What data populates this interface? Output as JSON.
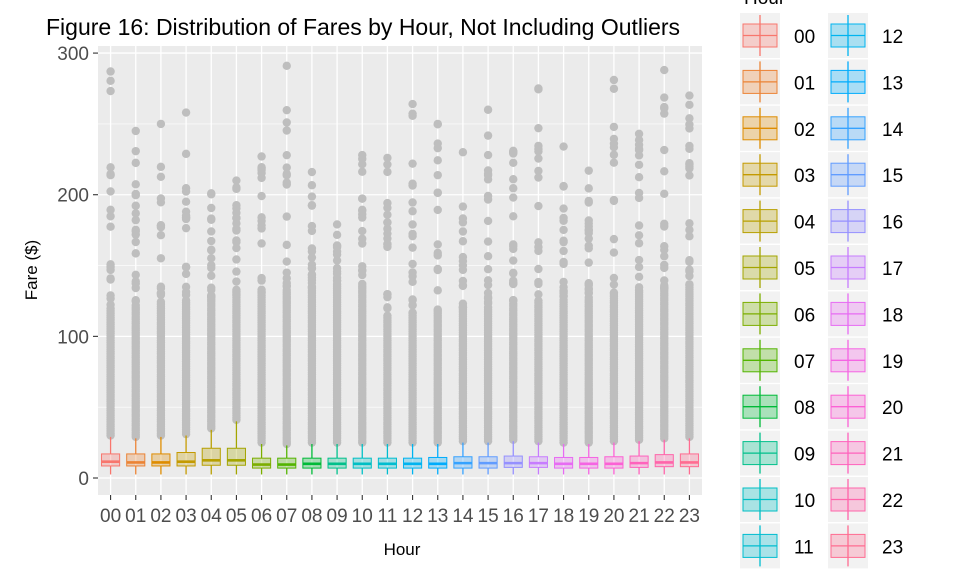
{
  "chart_data": {
    "type": "box",
    "title": "Figure 16: Distribution of Fares by Hour, Not Including Outliers",
    "xlabel": "Hour",
    "ylabel": "Fare ($)",
    "legend_title": "Hour",
    "legend_position": "right",
    "ylim": [
      -12,
      305
    ],
    "yticks": [
      0,
      100,
      200,
      300
    ],
    "grid": true,
    "categories": [
      "00",
      "01",
      "02",
      "03",
      "04",
      "05",
      "06",
      "07",
      "08",
      "09",
      "10",
      "11",
      "12",
      "13",
      "14",
      "15",
      "16",
      "17",
      "18",
      "19",
      "20",
      "21",
      "22",
      "23"
    ],
    "series_colors": [
      "#F8766D",
      "#EB8335",
      "#DE8C00",
      "#C49A00",
      "#B79F00",
      "#A3A500",
      "#7CAE00",
      "#53B400",
      "#00BA38",
      "#00C08B",
      "#00BFC4",
      "#00BDD0",
      "#00B4F0",
      "#00ACFC",
      "#35A2FF",
      "#619CFF",
      "#9590FF",
      "#C77CFF",
      "#E76BF3",
      "#F564E3",
      "#FC61D5",
      "#FF62BC",
      "#FF65AA",
      "#FF6C91"
    ],
    "outlier_color": "#BEBEBE",
    "boxes": [
      {
        "hour": "00",
        "lower": 2.5,
        "q1": 8.5,
        "median": 11.5,
        "q3": 17,
        "upper": 29,
        "max_outlier": 287
      },
      {
        "hour": "01",
        "lower": 2.5,
        "q1": 8.5,
        "median": 11,
        "q3": 17,
        "upper": 28,
        "max_outlier": 245
      },
      {
        "hour": "02",
        "lower": 2.5,
        "q1": 8.5,
        "median": 11,
        "q3": 17,
        "upper": 29,
        "max_outlier": 250
      },
      {
        "hour": "03",
        "lower": 2.5,
        "q1": 8.5,
        "median": 11.5,
        "q3": 18,
        "upper": 30,
        "max_outlier": 258
      },
      {
        "hour": "04",
        "lower": 2.5,
        "q1": 9,
        "median": 12.5,
        "q3": 21,
        "upper": 34,
        "max_outlier": 201
      },
      {
        "hour": "05",
        "lower": 2.5,
        "q1": 9,
        "median": 12.5,
        "q3": 21,
        "upper": 40,
        "max_outlier": 210
      },
      {
        "hour": "06",
        "lower": 2.5,
        "q1": 7,
        "median": 9.5,
        "q3": 14,
        "upper": 24,
        "max_outlier": 227
      },
      {
        "hour": "07",
        "lower": 2.5,
        "q1": 7,
        "median": 9.5,
        "q3": 14,
        "upper": 23,
        "max_outlier": 291
      },
      {
        "hour": "08",
        "lower": 2.5,
        "q1": 7,
        "median": 10,
        "q3": 14,
        "upper": 24,
        "max_outlier": 216
      },
      {
        "hour": "09",
        "lower": 2.5,
        "q1": 7,
        "median": 10,
        "q3": 14,
        "upper": 24,
        "max_outlier": 179
      },
      {
        "hour": "10",
        "lower": 2.5,
        "q1": 7,
        "median": 10,
        "q3": 14,
        "upper": 24,
        "max_outlier": 228
      },
      {
        "hour": "11",
        "lower": 2.5,
        "q1": 7,
        "median": 10,
        "q3": 14,
        "upper": 24,
        "max_outlier": 226
      },
      {
        "hour": "12",
        "lower": 2.5,
        "q1": 7,
        "median": 10,
        "q3": 14,
        "upper": 24,
        "max_outlier": 264
      },
      {
        "hour": "13",
        "lower": 2.5,
        "q1": 7,
        "median": 10,
        "q3": 14.5,
        "upper": 24,
        "max_outlier": 250
      },
      {
        "hour": "14",
        "lower": 2.5,
        "q1": 7,
        "median": 10.5,
        "q3": 15,
        "upper": 25,
        "max_outlier": 230
      },
      {
        "hour": "15",
        "lower": 2.5,
        "q1": 7,
        "median": 10.5,
        "q3": 15,
        "upper": 25,
        "max_outlier": 260
      },
      {
        "hour": "16",
        "lower": 2.5,
        "q1": 7.5,
        "median": 10.5,
        "q3": 15.5,
        "upper": 26,
        "max_outlier": 231
      },
      {
        "hour": "17",
        "lower": 2.5,
        "q1": 7.5,
        "median": 10.5,
        "q3": 15,
        "upper": 25,
        "max_outlier": 275
      },
      {
        "hour": "18",
        "lower": 2.5,
        "q1": 7,
        "median": 10,
        "q3": 14.5,
        "upper": 24,
        "max_outlier": 234
      },
      {
        "hour": "19",
        "lower": 2.5,
        "q1": 7,
        "median": 10,
        "q3": 14.5,
        "upper": 24,
        "max_outlier": 217
      },
      {
        "hour": "20",
        "lower": 2.5,
        "q1": 7,
        "median": 10,
        "q3": 15,
        "upper": 25,
        "max_outlier": 281
      },
      {
        "hour": "21",
        "lower": 2.5,
        "q1": 7.5,
        "median": 10.5,
        "q3": 15.5,
        "upper": 26,
        "max_outlier": 243
      },
      {
        "hour": "22",
        "lower": 2.5,
        "q1": 8,
        "median": 11,
        "q3": 16.5,
        "upper": 27,
        "max_outlier": 288
      },
      {
        "hour": "23",
        "lower": 2.5,
        "q1": 8,
        "median": 11,
        "q3": 17,
        "upper": 28,
        "max_outlier": 270
      }
    ]
  }
}
